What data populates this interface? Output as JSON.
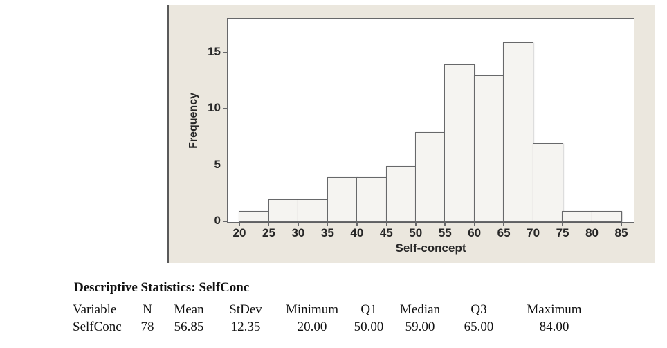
{
  "chart_data": {
    "type": "bar",
    "subtype": "histogram",
    "title": "",
    "xlabel": "Self-concept",
    "ylabel": "Frequency",
    "bin_edges": [
      20,
      25,
      30,
      35,
      40,
      45,
      50,
      55,
      60,
      65,
      70,
      75,
      80,
      85
    ],
    "values": [
      1,
      2,
      2,
      4,
      4,
      5,
      8,
      14,
      13,
      16,
      7,
      1,
      1
    ],
    "x_ticks": [
      20,
      25,
      30,
      35,
      40,
      45,
      50,
      55,
      60,
      65,
      70,
      75,
      80,
      85
    ],
    "y_ticks": [
      0,
      5,
      10,
      15
    ],
    "xlim": [
      20,
      85
    ],
    "ylim": [
      0,
      18
    ],
    "grid": false,
    "legend_position": "none",
    "colors": {
      "bar_fill": "#f5f4f1",
      "bar_stroke": "#67686a",
      "plot_bg": "#ffffff",
      "panel_bg": "#ebe7de",
      "panel_edge": "#5a5a5a",
      "axis": "#67686a",
      "text": "#262626"
    }
  },
  "stats": {
    "title": "Descriptive Statistics: SelfConc",
    "columns": [
      "Variable",
      "N",
      "Mean",
      "StDev",
      "Minimum",
      "Q1",
      "Median",
      "Q3",
      "Maximum"
    ],
    "rows": [
      [
        "SelfConc",
        "78",
        "56.85",
        "12.35",
        "20.00",
        "50.00",
        "59.00",
        "65.00",
        "84.00"
      ]
    ]
  }
}
